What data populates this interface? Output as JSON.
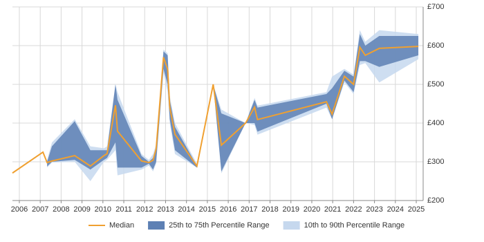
{
  "chart_data": {
    "type": "line-band",
    "x": [
      2005.67,
      2007.13,
      2007.33,
      2007.56,
      2008.65,
      2009.4,
      2010.05,
      2010.2,
      2010.6,
      2010.7,
      2011.85,
      2012.2,
      2012.4,
      2012.55,
      2012.9,
      2013.1,
      2013.2,
      2013.45,
      2014.5,
      2015.28,
      2015.67,
      2016.83,
      2017.26,
      2017.4,
      2020.7,
      2020.97,
      2021.56,
      2022.0,
      2022.3,
      2022.56,
      2023.23,
      2025.1
    ],
    "series": [
      {
        "name": "Median",
        "color": "#f0a030",
        "values": [
          271,
          325,
          298,
          302,
          316,
          289,
          316,
          321,
          446,
          379,
          302,
          298,
          304,
          334,
          570,
          539,
          441,
          371,
          289,
          500,
          343,
          400,
          441,
          409,
          455,
          423,
          521,
          500,
          596,
          575,
          593,
          598
        ]
      },
      {
        "name": "25th to 75th Percentile Range",
        "color": "#5d80b4",
        "low": [
          null,
          null,
          288,
          300,
          305,
          280,
          305,
          310,
          350,
          285,
          285,
          295,
          280,
          300,
          540,
          500,
          410,
          330,
          285,
          500,
          275,
          400,
          400,
          378,
          450,
          410,
          510,
          480,
          560,
          560,
          545,
          575
        ],
        "high": [
          null,
          null,
          300,
          340,
          405,
          330,
          330,
          330,
          500,
          460,
          315,
          300,
          310,
          340,
          585,
          575,
          460,
          390,
          290,
          500,
          425,
          400,
          460,
          440,
          475,
          490,
          535,
          520,
          630,
          600,
          625,
          625
        ]
      },
      {
        "name": "10th to 90th Percentile Range",
        "color": "#c6d8ee",
        "low": [
          null,
          null,
          285,
          298,
          300,
          250,
          300,
          305,
          330,
          265,
          280,
          290,
          275,
          295,
          530,
          480,
          400,
          320,
          285,
          500,
          270,
          400,
          395,
          370,
          440,
          410,
          505,
          475,
          550,
          555,
          505,
          565
        ],
        "high": [
          null,
          null,
          305,
          350,
          410,
          340,
          335,
          340,
          500,
          480,
          320,
          305,
          320,
          345,
          590,
          580,
          470,
          400,
          295,
          500,
          435,
          400,
          465,
          445,
          480,
          520,
          540,
          525,
          640,
          610,
          640,
          630
        ]
      }
    ],
    "xlim": [
      2005.67,
      2025.33
    ],
    "xticks": [
      2006,
      2007,
      2008,
      2009,
      2010,
      2011,
      2012,
      2013,
      2014,
      2015,
      2016,
      2017,
      2018,
      2019,
      2020,
      2021,
      2022,
      2023,
      2024,
      2025
    ],
    "ylim": [
      200,
      700
    ],
    "yticks": [
      {
        "value": 200,
        "label": "£200"
      },
      {
        "value": 300,
        "label": "£300"
      },
      {
        "value": 400,
        "label": "£400"
      },
      {
        "value": 500,
        "label": "£500"
      },
      {
        "value": 600,
        "label": "£600"
      },
      {
        "value": 700,
        "label": "£700"
      }
    ],
    "grid": true
  }
}
